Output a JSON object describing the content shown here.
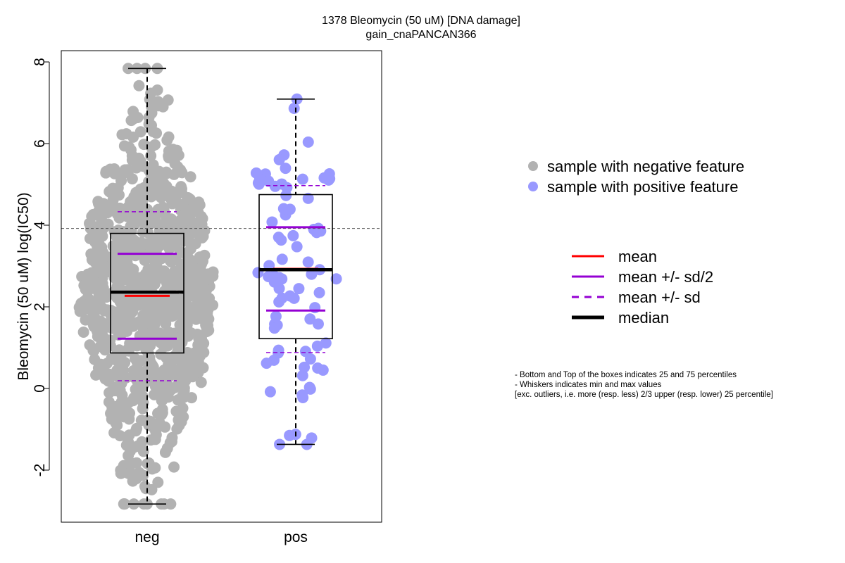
{
  "chart_data": {
    "type": "scatter",
    "subtype": "box-beeswarm",
    "title": "1378 Bleomycin (50 uM) [DNA damage]",
    "subtitle": "gain_cnaPANCAN366",
    "xlabel": "",
    "ylabel": "Bleomycin (50 uM) log(IC50)",
    "categories": [
      "neg",
      "pos"
    ],
    "ylim": [
      -3.3,
      8.3
    ],
    "yticks": [
      "-2",
      "0",
      "2",
      "4",
      "6",
      "8"
    ],
    "reference_line": 3.92,
    "grid": false,
    "legend_position": "right",
    "groups": [
      {
        "category": "neg",
        "color": "#b2b2b2",
        "n": 950,
        "box": {
          "q1": 0.87,
          "median": 2.36,
          "q3": 3.8,
          "whisker_low": -2.83,
          "whisker_high": 7.84
        },
        "mean": 2.27,
        "mean_minus_half_sd": 1.22,
        "mean_plus_half_sd": 3.3,
        "mean_minus_sd": 0.19,
        "mean_plus_sd": 4.33
      },
      {
        "category": "pos",
        "color": "#9999ff",
        "n": 80,
        "box": {
          "q1": 1.22,
          "median": 2.91,
          "q3": 4.75,
          "whisker_low": -1.37,
          "whisker_high": 7.09
        },
        "mean": 2.93,
        "mean_minus_half_sd": 1.91,
        "mean_plus_half_sd": 3.95,
        "mean_minus_sd": 0.88,
        "mean_plus_sd": 4.97
      }
    ],
    "legend_points": [
      {
        "label": "sample with negative feature",
        "color": "#b2b2b2"
      },
      {
        "label": "sample with positive feature",
        "color": "#9999ff"
      }
    ],
    "legend_lines": [
      {
        "label": "mean",
        "color": "#ff0000",
        "style": "solid"
      },
      {
        "label": "mean +/- sd/2",
        "color": "#9400d3",
        "style": "solid"
      },
      {
        "label": "mean +/- sd",
        "color": "#9400d3",
        "style": "dashed"
      },
      {
        "label": "median",
        "color": "#000000",
        "style": "solid-thick"
      }
    ],
    "notes": [
      "- Bottom and Top of the boxes indicates 25 and 75 percentiles",
      "- Whiskers indicates min and max values",
      "[exc. outliers, i.e. more (resp. less) 2/3 upper (resp. lower) 25 percentile]"
    ]
  }
}
